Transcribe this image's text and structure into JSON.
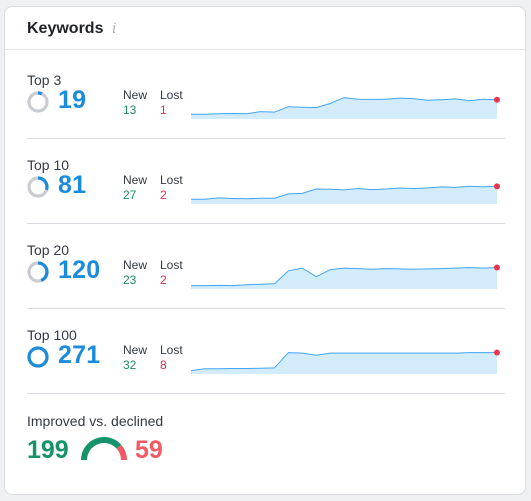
{
  "card": {
    "title": "Keywords",
    "info_icon": "info-icon"
  },
  "rows": [
    {
      "label": "Top 3",
      "count": "19",
      "new_label": "New",
      "new_value": "13",
      "lost_label": "Lost",
      "lost_value": "1",
      "ring_fill": 0.07,
      "trend": [
        0.1,
        0.1,
        0.12,
        0.13,
        0.12,
        0.2,
        0.18,
        0.38,
        0.36,
        0.35,
        0.5,
        0.72,
        0.66,
        0.65,
        0.66,
        0.7,
        0.68,
        0.62,
        0.64,
        0.67,
        0.6,
        0.66,
        0.64
      ]
    },
    {
      "label": "Top 10",
      "count": "81",
      "new_label": "New",
      "new_value": "27",
      "lost_label": "Lost",
      "lost_value": "2",
      "ring_fill": 0.3,
      "trend": [
        0.1,
        0.1,
        0.15,
        0.13,
        0.12,
        0.14,
        0.14,
        0.3,
        0.32,
        0.48,
        0.47,
        0.45,
        0.5,
        0.46,
        0.48,
        0.52,
        0.5,
        0.52,
        0.56,
        0.54,
        0.58,
        0.56,
        0.58
      ]
    },
    {
      "label": "Top 20",
      "count": "120",
      "new_label": "New",
      "new_value": "23",
      "lost_label": "Lost",
      "lost_value": "2",
      "ring_fill": 0.44,
      "trend": [
        0.05,
        0.05,
        0.06,
        0.05,
        0.08,
        0.1,
        0.12,
        0.6,
        0.7,
        0.38,
        0.64,
        0.7,
        0.68,
        0.66,
        0.68,
        0.67,
        0.66,
        0.67,
        0.68,
        0.7,
        0.72,
        0.7,
        0.72
      ]
    },
    {
      "label": "Top 100",
      "count": "271",
      "new_label": "New",
      "new_value": "32",
      "lost_label": "Lost",
      "lost_value": "8",
      "ring_fill": 1.0,
      "trend": [
        0.05,
        0.12,
        0.12,
        0.13,
        0.13,
        0.14,
        0.15,
        0.72,
        0.7,
        0.62,
        0.7,
        0.7,
        0.7,
        0.7,
        0.7,
        0.7,
        0.7,
        0.7,
        0.7,
        0.7,
        0.72,
        0.72,
        0.72
      ]
    }
  ],
  "summary": {
    "label": "Improved vs. declined",
    "improved": "199",
    "declined": "59",
    "improved_share": 0.77
  },
  "colors": {
    "accent": "#1b8cdc",
    "ring_track": "#c9ccd1",
    "spark_line": "#42a5f5",
    "spark_fill": "#d3ecfc",
    "spark_dot": "#e8334a",
    "improved": "#17936b",
    "declined": "#f05a64"
  }
}
